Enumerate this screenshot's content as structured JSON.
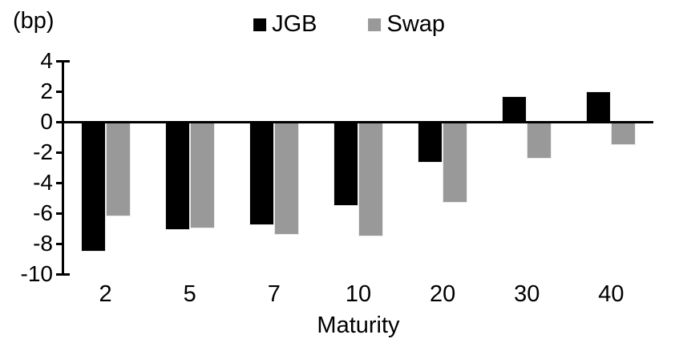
{
  "chart_data": {
    "type": "bar",
    "title": "",
    "unit_label": "(bp)",
    "xlabel": "Maturity",
    "ylabel": "",
    "categories": [
      "2",
      "5",
      "7",
      "10",
      "20",
      "30",
      "40"
    ],
    "series": [
      {
        "name": "JGB",
        "color": "#000000",
        "values": [
          -8.5,
          -7.1,
          -6.8,
          -5.5,
          -2.7,
          1.7,
          2.0
        ]
      },
      {
        "name": "Swap",
        "color": "#999999",
        "values": [
          -6.2,
          -7.0,
          -7.4,
          -7.5,
          -5.3,
          -2.4,
          -1.5
        ]
      }
    ],
    "ylim": [
      -10,
      4
    ],
    "ytick_step": 2,
    "yticks": [
      4,
      2,
      0,
      -2,
      -4,
      -6,
      -8,
      -10
    ],
    "legend_position": "top-center",
    "grid": false,
    "axis_color": "#000000",
    "background_color": "#ffffff"
  }
}
